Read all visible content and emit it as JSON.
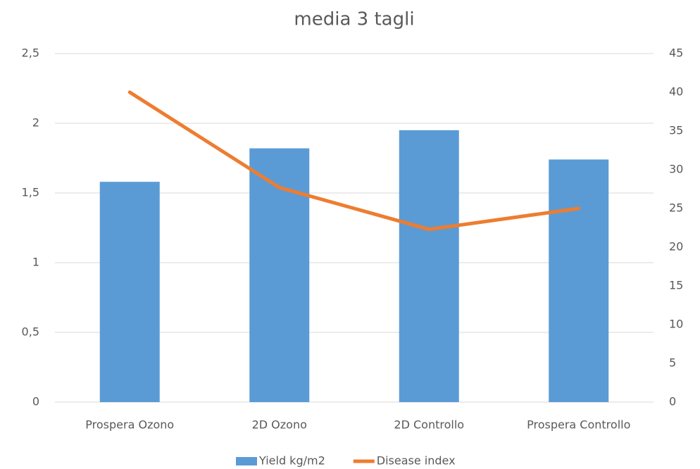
{
  "chart_data": {
    "type": "bar",
    "title": "media 3 tagli",
    "categories": [
      "Prospera Ozono",
      "2D Ozono",
      "2D Controllo",
      "Prospera Controllo"
    ],
    "series": [
      {
        "name": "Yield kg/m2",
        "color": "#5b9bd5",
        "type": "bar",
        "axis": "y",
        "values": [
          1.58,
          1.82,
          1.95,
          1.74
        ]
      },
      {
        "name": "Disease index",
        "color": "#ed7d31",
        "type": "line",
        "axis": "y2",
        "values": [
          40,
          27.7,
          22.3,
          25
        ]
      }
    ],
    "ylim": [
      0,
      2.5
    ],
    "yticks": [
      0,
      {
        "value": 0.5,
        "label": "0,5"
      },
      1,
      {
        "value": 1.5,
        "label": "1,5"
      },
      2,
      {
        "value": 2.5,
        "label": "2,5"
      }
    ],
    "y2lim": [
      0,
      45
    ],
    "y2ticks": [
      0,
      5,
      10,
      15,
      20,
      25,
      30,
      35,
      40,
      45
    ],
    "grid": true,
    "legend": "bottom"
  }
}
